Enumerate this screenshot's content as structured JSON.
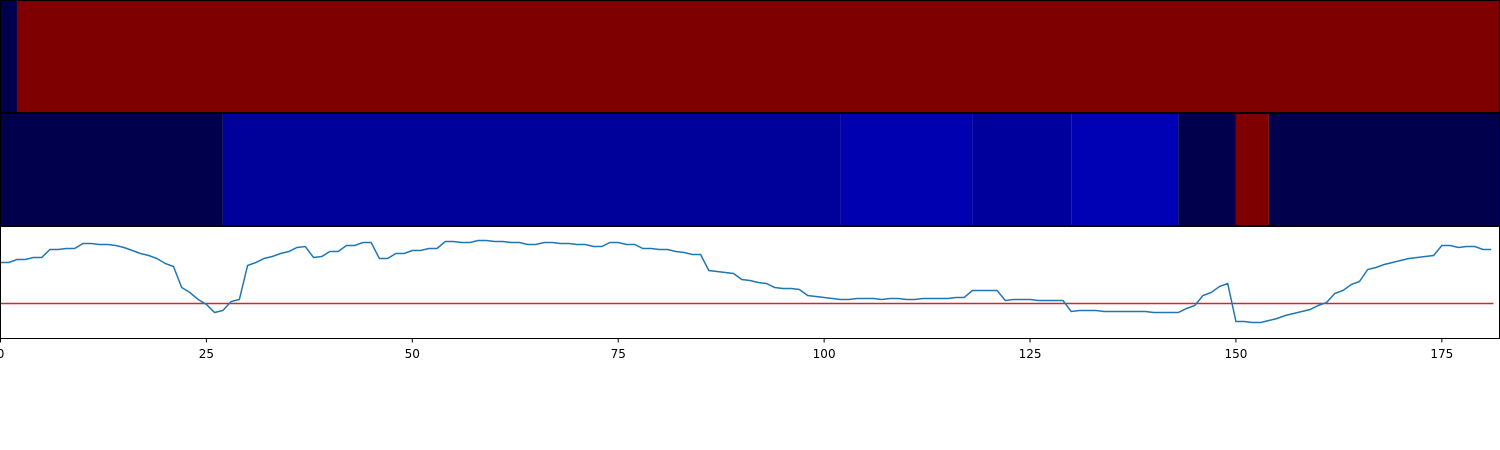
{
  "chart_data": {
    "type": "line",
    "xlim": [
      0,
      182
    ],
    "xticks": [
      0,
      25,
      50,
      75,
      100,
      125,
      150,
      175
    ],
    "ylim": [
      0,
      112
    ],
    "strips": [
      [
        {
          "start": 0,
          "end": 2,
          "color": "#00004c"
        },
        {
          "start": 2,
          "end": 182,
          "color": "#7f0000"
        }
      ],
      [
        {
          "start": 0,
          "end": 27,
          "color": "#00004c"
        },
        {
          "start": 27,
          "end": 102,
          "color": "#00009a"
        },
        {
          "start": 102,
          "end": 118,
          "color": "#0000b0"
        },
        {
          "start": 118,
          "end": 130,
          "color": "#00009c"
        },
        {
          "start": 130,
          "end": 143,
          "color": "#0000b5"
        },
        {
          "start": 143,
          "end": 150,
          "color": "#00004c"
        },
        {
          "start": 150,
          "end": 154,
          "color": "#7f0000"
        },
        {
          "start": 154,
          "end": 182,
          "color": "#00004c"
        }
      ]
    ],
    "hline": 35,
    "hline_color": "#d62728",
    "series": [
      {
        "color": "#1f77b4",
        "x": [
          0,
          1,
          2,
          3,
          4,
          5,
          6,
          7,
          8,
          9,
          10,
          11,
          12,
          13,
          14,
          15,
          16,
          17,
          18,
          19,
          20,
          21,
          22,
          23,
          24,
          25,
          26,
          27,
          28,
          29,
          30,
          31,
          32,
          33,
          34,
          35,
          36,
          37,
          38,
          39,
          40,
          41,
          42,
          43,
          44,
          45,
          46,
          47,
          48,
          49,
          50,
          51,
          52,
          53,
          54,
          55,
          56,
          57,
          58,
          59,
          60,
          61,
          62,
          63,
          64,
          65,
          66,
          67,
          68,
          69,
          70,
          71,
          72,
          73,
          74,
          75,
          76,
          77,
          78,
          79,
          80,
          81,
          82,
          83,
          84,
          85,
          86,
          87,
          88,
          89,
          90,
          91,
          92,
          93,
          94,
          95,
          96,
          97,
          98,
          99,
          100,
          101,
          102,
          103,
          104,
          105,
          106,
          107,
          108,
          109,
          110,
          111,
          112,
          113,
          114,
          115,
          116,
          117,
          118,
          119,
          120,
          121,
          122,
          123,
          124,
          125,
          126,
          127,
          128,
          129,
          130,
          131,
          132,
          133,
          134,
          135,
          136,
          137,
          138,
          139,
          140,
          141,
          142,
          143,
          144,
          145,
          146,
          147,
          148,
          149,
          150,
          151,
          152,
          153,
          154,
          155,
          156,
          157,
          158,
          159,
          160,
          161,
          162,
          163,
          164,
          165,
          166,
          167,
          168,
          169,
          170,
          171,
          172,
          173,
          174,
          175,
          176,
          177,
          178,
          179,
          180,
          181
        ],
        "values": [
          76,
          76,
          79,
          79,
          81,
          81,
          89,
          89,
          90,
          90,
          95,
          95,
          94,
          94,
          93,
          91,
          88,
          85,
          83,
          80,
          75,
          72,
          51,
          46,
          39,
          34,
          26,
          28,
          37,
          39,
          73,
          76,
          80,
          82,
          85,
          87,
          91,
          92,
          81,
          82,
          87,
          87,
          93,
          93,
          96,
          96,
          80,
          80,
          85,
          85,
          88,
          88,
          90,
          90,
          97,
          97,
          96,
          96,
          98,
          98,
          97,
          97,
          96,
          96,
          94,
          94,
          96,
          96,
          95,
          95,
          94,
          94,
          92,
          92,
          96,
          96,
          94,
          94,
          90,
          90,
          89,
          89,
          87,
          86,
          84,
          84,
          68,
          67,
          66,
          65,
          59,
          58,
          56,
          55,
          51,
          50,
          50,
          49,
          43,
          42,
          41,
          40,
          39,
          39,
          40,
          40,
          40,
          39,
          40,
          40,
          39,
          39,
          40,
          40,
          40,
          40,
          41,
          41,
          48,
          48,
          48,
          48,
          38,
          39,
          39,
          39,
          38,
          38,
          38,
          38,
          27,
          28,
          28,
          28,
          27,
          27,
          27,
          27,
          27,
          27,
          26,
          26,
          26,
          26,
          30,
          33,
          43,
          46,
          52,
          55,
          17,
          17,
          16,
          16,
          18,
          20,
          23,
          25,
          27,
          29,
          33,
          36,
          45,
          48,
          54,
          57,
          69,
          71,
          74,
          76,
          78,
          80,
          81,
          82,
          83,
          93,
          93,
          91,
          92,
          92,
          89,
          89
        ]
      }
    ]
  }
}
